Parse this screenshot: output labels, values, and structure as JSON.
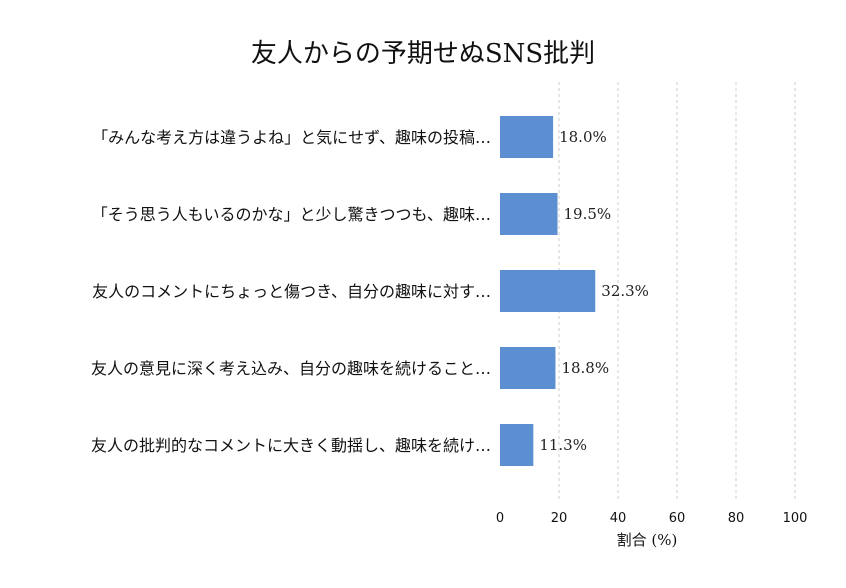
{
  "chart_data": {
    "type": "bar",
    "orientation": "horizontal",
    "title": "友人からの予期せぬSNS批判",
    "xlabel": "割合 (%)",
    "ylabel": "",
    "xlim": [
      0,
      100
    ],
    "xticks": [
      "0",
      "20",
      "40",
      "60",
      "80",
      "100"
    ],
    "grid": true,
    "bar_color": "#5b8fd1",
    "categories": [
      "「みんな考え方は違うよね」と気にせず、趣味の投稿…",
      "「そう思う人もいるのかな」と少し驚きつつも、趣味…",
      "友人のコメントにちょっと傷つき、自分の趣味に対す…",
      "友人の意見に深く考え込み、自分の趣味を続けること…",
      "友人の批判的なコメントに大きく動揺し、趣味を続け…"
    ],
    "values": [
      18.0,
      19.5,
      32.3,
      18.8,
      11.3
    ],
    "value_labels": [
      "18.0%",
      "19.5%",
      "32.3%",
      "18.8%",
      "11.3%"
    ]
  }
}
